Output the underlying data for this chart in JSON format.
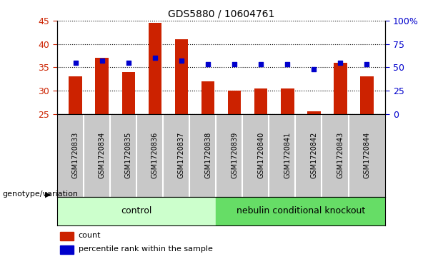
{
  "title": "GDS5880 / 10604761",
  "samples": [
    "GSM1720833",
    "GSM1720834",
    "GSM1720835",
    "GSM1720836",
    "GSM1720837",
    "GSM1720838",
    "GSM1720839",
    "GSM1720840",
    "GSM1720841",
    "GSM1720842",
    "GSM1720843",
    "GSM1720844"
  ],
  "counts": [
    33,
    37,
    34,
    44.5,
    41,
    32,
    30,
    30.5,
    30.5,
    25.5,
    36,
    33
  ],
  "percentiles_pct": [
    55,
    57,
    55,
    60,
    57,
    53,
    53,
    53,
    53,
    48,
    55,
    53
  ],
  "ylim_left": [
    25,
    45
  ],
  "ylim_right": [
    0,
    100
  ],
  "yticks_left": [
    25,
    30,
    35,
    40,
    45
  ],
  "yticks_right": [
    0,
    25,
    50,
    75,
    100
  ],
  "ytick_labels_right": [
    "0",
    "25",
    "50",
    "75",
    "100%"
  ],
  "ytick_labels_left_color": "#cc2200",
  "ytick_labels_right_color": "#0000cc",
  "bar_color": "#cc2200",
  "dot_color": "#0000cc",
  "bar_bottom": 25,
  "n_control": 6,
  "n_knockout": 6,
  "control_label": "control",
  "knockout_label": "nebulin conditional knockout",
  "group_row_label": "genotype/variation",
  "control_color": "#ccffcc",
  "knockout_color": "#66dd66",
  "legend_count_label": "count",
  "legend_percentile_label": "percentile rank within the sample",
  "tick_area_bg": "#c8c8c8",
  "grid_linestyle": "dotted",
  "title_fontsize": 10,
  "bar_width": 0.5
}
